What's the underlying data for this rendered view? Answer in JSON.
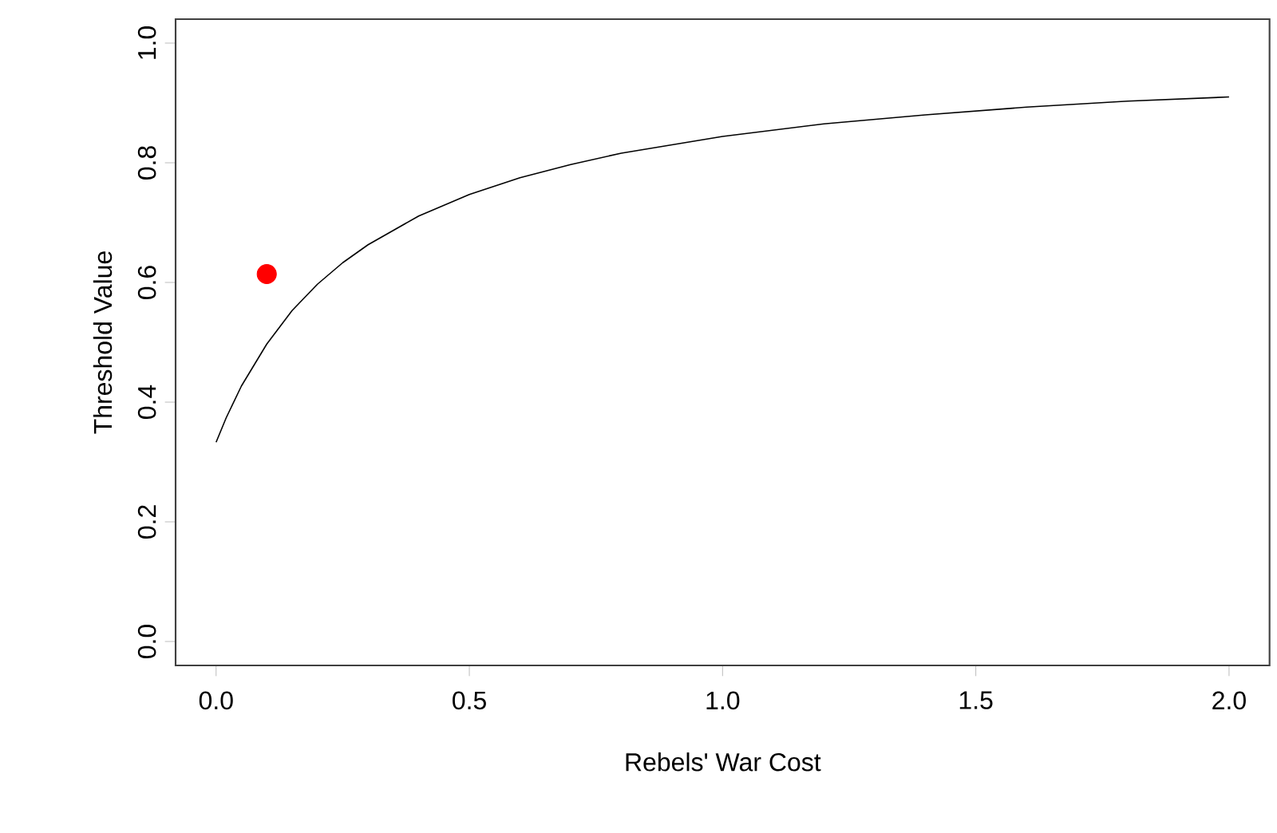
{
  "chart_data": {
    "type": "line",
    "xlabel": "Rebels' War Cost",
    "ylabel": "Threshold Value",
    "xlim": [
      -0.08,
      2.08
    ],
    "ylim": [
      -0.04,
      1.04
    ],
    "xticks": [
      {
        "value": 0,
        "label": "0.0"
      },
      {
        "value": 0.5,
        "label": "0.5"
      },
      {
        "value": 1,
        "label": "1.0"
      },
      {
        "value": 1.5,
        "label": "1.5"
      },
      {
        "value": 2,
        "label": "2.0"
      }
    ],
    "yticks": [
      {
        "value": 0,
        "label": "0.0"
      },
      {
        "value": 0.2,
        "label": "0.2"
      },
      {
        "value": 0.4,
        "label": "0.4"
      },
      {
        "value": 0.6,
        "label": "0.6"
      },
      {
        "value": 0.8,
        "label": "0.8"
      },
      {
        "value": 1,
        "label": "1.0"
      }
    ],
    "series": [
      {
        "color": "#000000",
        "x": [
          0,
          0.02,
          0.05,
          0.1,
          0.15,
          0.2,
          0.25,
          0.3,
          0.4,
          0.5,
          0.6,
          0.7,
          0.8,
          1.0,
          1.2,
          1.4,
          1.6,
          1.8,
          2.0
        ],
        "values": [
          0.333,
          0.374,
          0.427,
          0.497,
          0.553,
          0.597,
          0.633,
          0.663,
          0.711,
          0.747,
          0.775,
          0.797,
          0.816,
          0.844,
          0.865,
          0.88,
          0.893,
          0.903,
          0.91
        ]
      },
      {
        "type": "scatter",
        "color": "#ff0000",
        "marker": "circle",
        "x": [
          0.1
        ],
        "values": [
          0.614
        ]
      }
    ]
  }
}
